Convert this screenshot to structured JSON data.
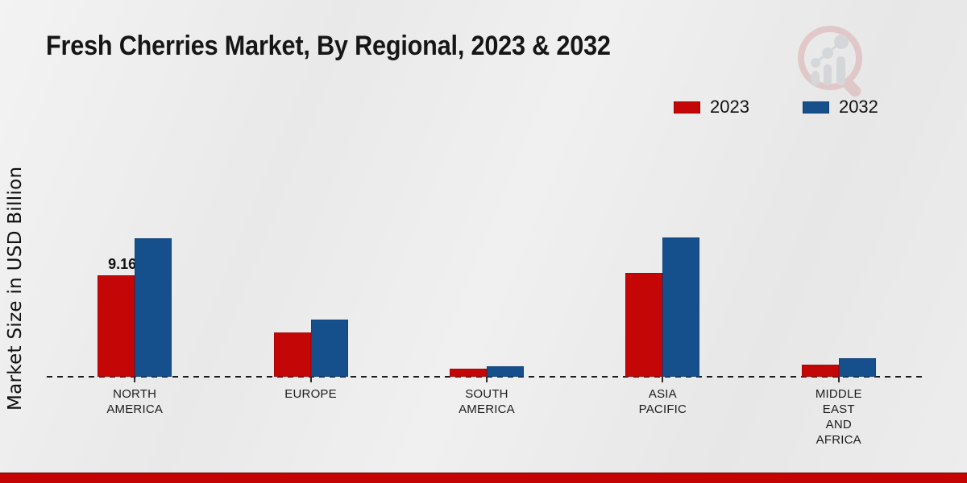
{
  "chart_data": {
    "type": "bar",
    "title": "Fresh Cherries Market, By Regional, 2023 & 2032",
    "ylabel": "Market Size in USD Billion",
    "categories": [
      "NORTH AMERICA",
      "EUROPE",
      "SOUTH AMERICA",
      "ASIA PACIFIC",
      "MIDDLE EAST AND AFRICA"
    ],
    "category_lines": [
      "NORTH\nAMERICA",
      "EUROPE",
      "SOUTH\nAMERICA",
      "ASIA\nPACIFIC",
      "MIDDLE\nEAST\nAND\nAFRICA"
    ],
    "series": [
      {
        "name": "2023",
        "color": "#c40606",
        "values": [
          9.16,
          4.0,
          0.7,
          9.4,
          1.1
        ],
        "data_labels": [
          "9.16",
          null,
          null,
          null,
          null
        ]
      },
      {
        "name": "2032",
        "color": "#15508d",
        "values": [
          12.5,
          5.15,
          0.95,
          12.55,
          1.65
        ],
        "data_labels": [
          null,
          null,
          null,
          null,
          null
        ]
      }
    ],
    "ylim": [
      0,
      14
    ],
    "grid": false,
    "legend_position": "top-right",
    "axis_style": "dashed-baseline",
    "value_unit": "USD Billion"
  },
  "legend": {
    "items": [
      {
        "label": "2023",
        "color": "#c40606"
      },
      {
        "label": "2032",
        "color": "#15508d"
      }
    ]
  },
  "branding": {
    "watermark": "market-research-logo",
    "accent_bar_color": "#c40303"
  }
}
